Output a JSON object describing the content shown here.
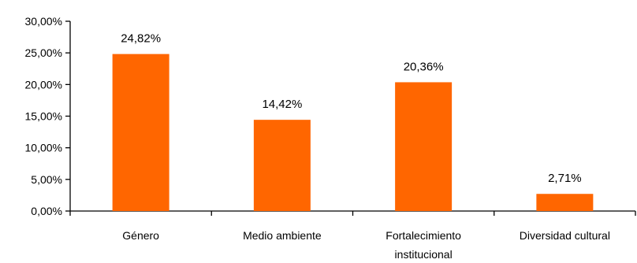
{
  "chart_data": {
    "type": "bar",
    "categories": [
      [
        "Género"
      ],
      [
        "Medio ambiente"
      ],
      [
        "Fortalecimiento",
        "institucional"
      ],
      [
        "Diversidad cultural"
      ]
    ],
    "values": [
      24.82,
      14.42,
      20.36,
      2.71
    ],
    "value_labels": [
      "24,82%",
      "14,42%",
      "20,36%",
      "2,71%"
    ],
    "ylim": [
      0,
      30
    ],
    "yticks": [
      0,
      5,
      10,
      15,
      20,
      25,
      30
    ],
    "ytick_labels": [
      "0,00%",
      "5,00%",
      "10,00%",
      "15,00%",
      "20,00%",
      "25,00%",
      "30,00%"
    ],
    "grid": false,
    "legend": "none",
    "colors": {
      "bar": "#ff6600",
      "axis": "#000000",
      "text": "#000000"
    }
  }
}
